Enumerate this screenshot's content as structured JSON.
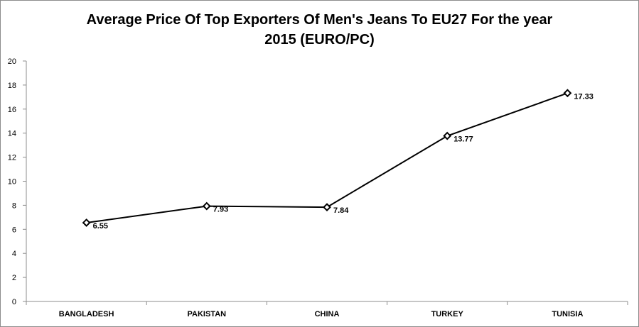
{
  "chart_data": {
    "type": "line",
    "title_line1": "Average Price Of Top Exporters Of Men's Jeans To EU27 For the year",
    "title_line2": "2015 (EURO/PC)",
    "categories": [
      "BANGLADESH",
      "PAKISTAN",
      "CHINA",
      "TURKEY",
      "TUNISIA"
    ],
    "values": [
      6.55,
      7.93,
      7.84,
      13.77,
      17.33
    ],
    "data_labels": [
      "6.55",
      "7.93",
      "7.84",
      "13.77",
      "17.33"
    ],
    "y_ticks": [
      0,
      2,
      4,
      6,
      8,
      10,
      12,
      14,
      16,
      18,
      20
    ],
    "ylim": [
      0,
      20
    ],
    "grid": false,
    "legend": "none",
    "line_color": "#000000",
    "marker": "diamond-open"
  }
}
